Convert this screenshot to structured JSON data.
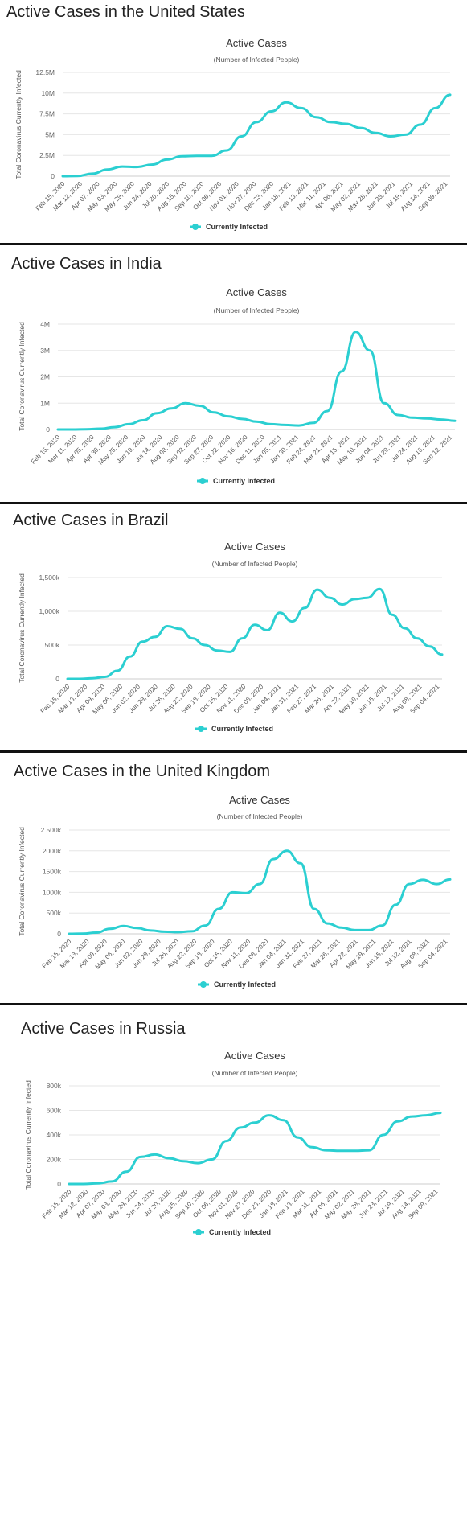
{
  "colors": {
    "series": "#2bcfd1",
    "grid": "#e6e6e6",
    "axis": "#cccccc",
    "divider": "#111111"
  },
  "panels": [
    {
      "heading": "Active Cases in the United States",
      "chart_data": {
        "type": "line",
        "title": "Active Cases",
        "subtitle": "(Number of Infected People)",
        "ylabel": "Total Coronavirus Currently Infected",
        "ylim": [
          0,
          12500000
        ],
        "yticks": [
          0,
          2500000,
          5000000,
          7500000,
          10000000,
          12500000
        ],
        "ytick_labels": [
          "0",
          "2.5M",
          "5M",
          "7.5M",
          "10M",
          "12.5M"
        ],
        "xtick_labels": [
          "Feb 15, 2020",
          "Mar 12, 2020",
          "Apr 07, 2020",
          "May 03, 2020",
          "May 29, 2020",
          "Jun 24, 2020",
          "Jul 20, 2020",
          "Aug 15, 2020",
          "Sep 10, 2020",
          "Oct 06, 2020",
          "Nov 01, 2020",
          "Nov 27, 2020",
          "Dec 23, 2020",
          "Jan 18, 2021",
          "Feb 13, 2021",
          "Mar 11, 2021",
          "Apr 06, 2021",
          "May 02, 2021",
          "May 28, 2021",
          "Jun 23, 2021",
          "Jul 19, 2021",
          "Aug 14, 2021",
          "Sep 09, 2021"
        ],
        "series": [
          {
            "name": "Currently Infected",
            "values": [
              0,
              20000,
              300000,
              800000,
              1150000,
              1100000,
              1400000,
              2000000,
              2400000,
              2450000,
              2450000,
              3100000,
              4800000,
              6500000,
              7800000,
              8900000,
              8200000,
              7100000,
              6500000,
              6300000,
              5800000,
              5200000,
              4800000,
              5000000,
              6200000,
              8200000,
              9800000
            ]
          }
        ],
        "legend": "bottom"
      }
    },
    {
      "heading": "Active Cases in India",
      "chart_data": {
        "type": "line",
        "title": "Active Cases",
        "subtitle": "(Number of Infected People)",
        "ylabel": "Total Coronavirus Currently Infected",
        "ylim": [
          0,
          4000000
        ],
        "yticks": [
          0,
          1000000,
          2000000,
          3000000,
          4000000
        ],
        "ytick_labels": [
          "0",
          "1M",
          "2M",
          "3M",
          "4M"
        ],
        "xtick_labels": [
          "Feb 15, 2020",
          "Mar 11, 2020",
          "Apr 05, 2020",
          "Apr 30, 2020",
          "May 25, 2020",
          "Jun 19, 2020",
          "Jul 14, 2020",
          "Aug 08, 2020",
          "Sep 02, 2020",
          "Sep 27, 2020",
          "Oct 22, 2020",
          "Nov 16, 2020",
          "Dec 11, 2020",
          "Jan 05, 2021",
          "Jan 30, 2021",
          "Feb 24, 2021",
          "Mar 21, 2021",
          "Apr 15, 2021",
          "May 10, 2021",
          "Jun 04, 2021",
          "Jun 29, 2021",
          "Jul 24, 2021",
          "Aug 18, 2021",
          "Sep 12, 2021"
        ],
        "series": [
          {
            "name": "Currently Infected",
            "values": [
              0,
              0,
              5000,
              30000,
              90000,
              200000,
              350000,
              620000,
              800000,
              1000000,
              900000,
              650000,
              500000,
              400000,
              300000,
              200000,
              170000,
              150000,
              250000,
              700000,
              2200000,
              3700000,
              3000000,
              1000000,
              550000,
              450000,
              420000,
              380000,
              330000
            ]
          }
        ],
        "legend": "bottom"
      }
    },
    {
      "heading": "Active Cases in Brazil",
      "chart_data": {
        "type": "line",
        "title": "Active Cases",
        "subtitle": "(Number of Infected People)",
        "ylabel": "Total Coronavirus Currently Infected",
        "ylim": [
          0,
          1500000
        ],
        "yticks": [
          0,
          500000,
          1000000,
          1500000
        ],
        "ytick_labels": [
          "0",
          "500k",
          "1,000k",
          "1,500k"
        ],
        "xtick_labels": [
          "Feb 15, 2020",
          "Mar 13, 2020",
          "Apr 09, 2020",
          "May 06, 2020",
          "Jun 02, 2020",
          "Jun 29, 2020",
          "Jul 26, 2020",
          "Aug 22, 2020",
          "Sep 18, 2020",
          "Oct 15, 2020",
          "Nov 11, 2020",
          "Dec 08, 2020",
          "Jan 04, 2021",
          "Jan 31, 2021",
          "Feb 27, 2021",
          "Mar 26, 2021",
          "Apr 22, 2021",
          "May 19, 2021",
          "Jun 15, 2021",
          "Jul 12, 2021",
          "Aug 08, 2021",
          "Sep 04, 2021"
        ],
        "series": [
          {
            "name": "Currently Infected",
            "values": [
              0,
              0,
              10000,
              30000,
              120000,
              330000,
              550000,
              620000,
              780000,
              740000,
              600000,
              500000,
              420000,
              400000,
              600000,
              800000,
              720000,
              980000,
              850000,
              1050000,
              1320000,
              1200000,
              1100000,
              1180000,
              1200000,
              1330000,
              950000,
              750000,
              600000,
              480000,
              360000
            ]
          }
        ],
        "legend": "bottom"
      }
    },
    {
      "heading": "Active Cases in the United Kingdom",
      "chart_data": {
        "type": "line",
        "title": "Active Cases",
        "subtitle": "(Number of Infected People)",
        "ylabel": "Total Coronavirus Currently Infected",
        "ylim": [
          0,
          2500000
        ],
        "yticks": [
          0,
          500000,
          1000000,
          1500000,
          2000000,
          2500000
        ],
        "ytick_labels": [
          "0",
          "500k",
          "1000k",
          "1500k",
          "2000k",
          "2 500k"
        ],
        "xtick_labels": [
          "Feb 15, 2020",
          "Mar 13, 2020",
          "Apr 09, 2020",
          "May 06, 2020",
          "Jun 02, 2020",
          "Jun 29, 2020",
          "Jul 26, 2020",
          "Aug 22, 2020",
          "Sep 18, 2020",
          "Oct 15, 2020",
          "Nov 11, 2020",
          "Dec 08, 2020",
          "Jan 04, 2021",
          "Jan 31, 2021",
          "Feb 27, 2021",
          "Mar 26, 2021",
          "Apr 22, 2021",
          "May 19, 2021",
          "Jun 15, 2021",
          "Jul 12, 2021",
          "Aug 08, 2021",
          "Sep 04, 2021"
        ],
        "series": [
          {
            "name": "Currently Infected",
            "values": [
              0,
              5000,
              30000,
              120000,
              190000,
              140000,
              80000,
              50000,
              40000,
              60000,
              200000,
              600000,
              1000000,
              980000,
              1200000,
              1800000,
              2000000,
              1700000,
              600000,
              250000,
              150000,
              90000,
              90000,
              200000,
              700000,
              1200000,
              1300000,
              1200000,
              1310000
            ]
          }
        ],
        "legend": "bottom"
      }
    },
    {
      "heading": "Active Cases in Russia",
      "chart_data": {
        "type": "line",
        "title": "Active Cases",
        "subtitle": "(Number of Infected People)",
        "ylabel": "Total Coronavirus Currently Infected",
        "ylim": [
          0,
          800000
        ],
        "yticks": [
          0,
          200000,
          400000,
          600000,
          800000
        ],
        "ytick_labels": [
          "0",
          "200k",
          "400k",
          "600k",
          "800k"
        ],
        "xtick_labels": [
          "Feb 15, 2020",
          "Mar 12, 2020",
          "Apr 07, 2020",
          "May 03, 2020",
          "May 29, 2020",
          "Jun 24, 2020",
          "Jul 20, 2020",
          "Aug 15, 2020",
          "Sep 10, 2020",
          "Oct 06, 2020",
          "Nov 01, 2020",
          "Nov 27, 2020",
          "Dec 23, 2020",
          "Jan 18, 2021",
          "Feb 13, 2021",
          "Mar 11, 2021",
          "Apr 06, 2021",
          "May 02, 2021",
          "May 28, 2021",
          "Jun 23, 2021",
          "Jul 19, 2021",
          "Aug 14, 2021",
          "Sep 09, 2021"
        ],
        "series": [
          {
            "name": "Currently Infected",
            "values": [
              0,
              0,
              5000,
              20000,
              100000,
              220000,
              240000,
              210000,
              185000,
              170000,
              200000,
              350000,
              460000,
              500000,
              560000,
              520000,
              380000,
              300000,
              275000,
              270000,
              270000,
              275000,
              400000,
              510000,
              550000,
              560000,
              580000
            ]
          }
        ],
        "legend": "bottom"
      }
    }
  ]
}
